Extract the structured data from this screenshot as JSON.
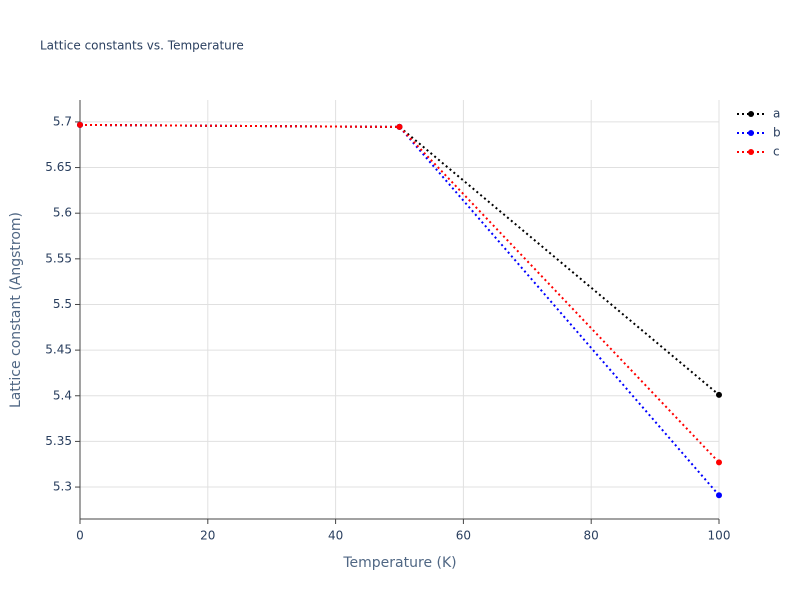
{
  "chart_data": {
    "type": "line",
    "title": "Lattice constants vs. Temperature",
    "x_label": "Temperature (K)",
    "y_label": "Lattice constant (Angstrom)",
    "x": [
      0,
      50,
      100
    ],
    "series": [
      {
        "name": "a",
        "color": "#000000",
        "values": [
          5.6967,
          5.6945,
          5.401
        ]
      },
      {
        "name": "b",
        "color": "#0000ff",
        "values": [
          5.6967,
          5.6945,
          5.291
        ]
      },
      {
        "name": "c",
        "color": "#ff0000",
        "values": [
          5.6967,
          5.6945,
          5.327
        ]
      }
    ],
    "xlim": [
      0,
      100
    ],
    "xticks": [
      0,
      20,
      40,
      60,
      80,
      100
    ],
    "ylim": [
      5.265,
      5.724
    ],
    "yticks": [
      5.3,
      5.35,
      5.4,
      5.45,
      5.5,
      5.55,
      5.6,
      5.65,
      5.7
    ],
    "grid": true,
    "legend": "right"
  }
}
